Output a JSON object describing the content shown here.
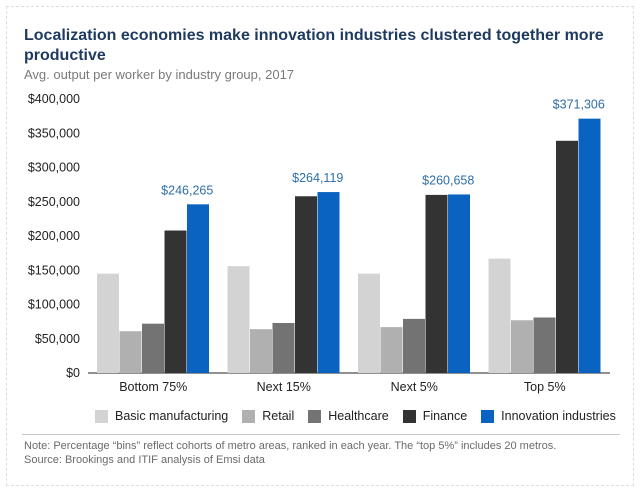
{
  "title": "Localization economies make innovation industries clustered together more productive",
  "subtitle": "Avg. output per worker by industry group, 2017",
  "note_line1": "Note: Percentage “bins” reflect cohorts of metro areas, ranked in each year. The “top 5%” includes 20 metros.",
  "note_line2": "Source: Brookings and ITIF analysis of Emsi data",
  "chart_data": {
    "type": "bar",
    "title": "Localization economies make innovation industries clustered together more productive",
    "subtitle": "Avg. output per worker by industry group, 2017",
    "categories": [
      "Bottom 75%",
      "Next 15%",
      "Next 5%",
      "Top 5%"
    ],
    "ylim": [
      0,
      400000
    ],
    "yticks": [
      0,
      50000,
      100000,
      150000,
      200000,
      250000,
      300000,
      350000,
      400000
    ],
    "ytick_labels": [
      "$0",
      "$50,000",
      "$100,000",
      "$150,000",
      "$200,000",
      "$250,000",
      "$300,000",
      "$350,000",
      "$400,000"
    ],
    "grid": false,
    "legend_position": "bottom",
    "series": [
      {
        "name": "Basic manufacturing",
        "color": "#d3d3d3",
        "values": [
          145000,
          156000,
          145000,
          167000
        ]
      },
      {
        "name": "Retail",
        "color": "#b0b0b0",
        "values": [
          61000,
          64000,
          67000,
          77000
        ]
      },
      {
        "name": "Healthcare",
        "color": "#737373",
        "values": [
          72000,
          73000,
          79000,
          81000
        ]
      },
      {
        "name": "Finance",
        "color": "#333333",
        "values": [
          208000,
          258000,
          260000,
          339000
        ]
      },
      {
        "name": "Innovation industries",
        "color": "#0a63c0",
        "values": [
          246265,
          264119,
          260658,
          371306
        ]
      }
    ],
    "data_labels": [
      "$246,265",
      "$264,119",
      "$260,658",
      "$371,306"
    ],
    "data_label_color": "#2f6ea7"
  }
}
